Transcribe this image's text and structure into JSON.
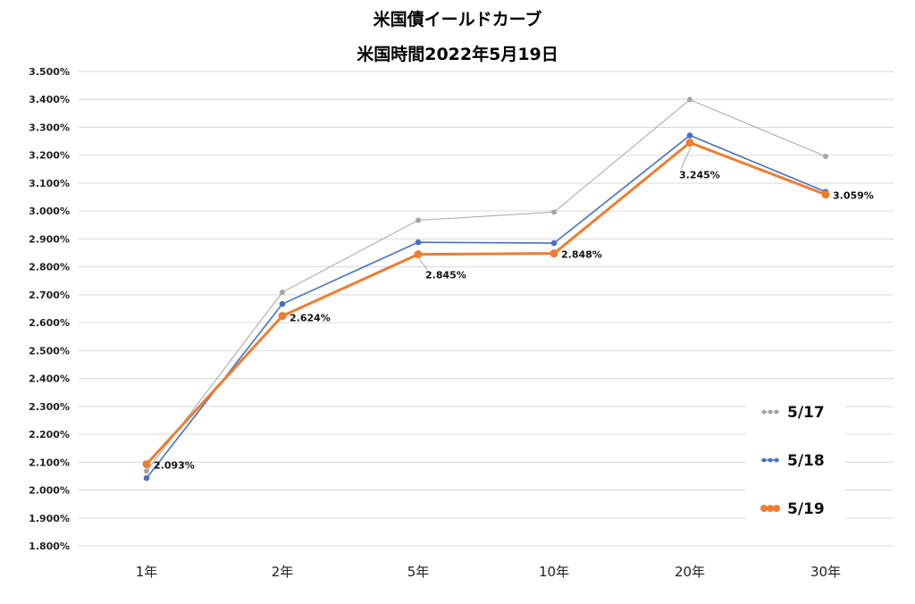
{
  "chart_data": {
    "type": "line",
    "title": "米国債イールドカーブ",
    "subtitle": "米国時間2022年5月19日",
    "categories": [
      "1年",
      "2年",
      "5年",
      "10年",
      "20年",
      "30年"
    ],
    "ylim": [
      1.8,
      3.5
    ],
    "ytick_step": 0.1,
    "ytick_format": "percent_3dp",
    "grid": true,
    "legend_position": "bottom-right",
    "series": [
      {
        "name": "5/17",
        "color": "#a5a5a5",
        "values": [
          2.068,
          2.709,
          2.967,
          2.996,
          3.399,
          3.196
        ]
      },
      {
        "name": "5/18",
        "color": "#4472c4",
        "values": [
          2.043,
          2.667,
          2.888,
          2.885,
          3.271,
          3.069
        ]
      },
      {
        "name": "5/19",
        "color": "#ed7d31",
        "values": [
          2.093,
          2.624,
          2.845,
          2.848,
          3.245,
          3.059
        ]
      }
    ],
    "data_labels": [
      {
        "series": "5/19",
        "index": 0,
        "text": "2.093%"
      },
      {
        "series": "5/19",
        "index": 1,
        "text": "2.624%"
      },
      {
        "series": "5/19",
        "index": 2,
        "text": "2.845%"
      },
      {
        "series": "5/19",
        "index": 3,
        "text": "2.848%"
      },
      {
        "series": "5/19",
        "index": 4,
        "text": "3.245%"
      },
      {
        "series": "5/19",
        "index": 5,
        "text": "3.059%"
      }
    ]
  }
}
